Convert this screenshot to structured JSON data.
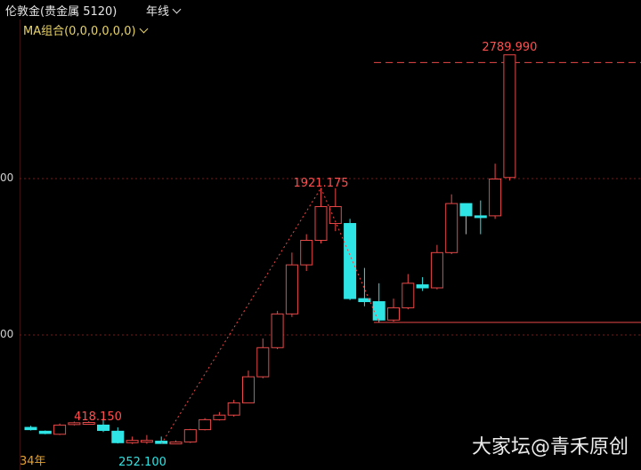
{
  "header": {
    "instrument": "伦敦金(贵金属 5120)",
    "period": "年线",
    "indicator": "MA组合(0,0,0,0,0,0)"
  },
  "chart_data": {
    "type": "candlestick",
    "y_tick_labels": [
      "00",
      "00"
    ],
    "x_tick_labels": [
      "34年"
    ],
    "y_range": [
      0,
      3000
    ],
    "annotations": {
      "high_1": "1921.175",
      "high_2": "2789.990",
      "low_1": "418.150",
      "low_2": "252.100"
    },
    "candles": [
      {
        "o": 360,
        "c": 345,
        "h": 370,
        "l": 340,
        "dir": "down"
      },
      {
        "o": 335,
        "c": 320,
        "h": 340,
        "l": 315,
        "dir": "down"
      },
      {
        "o": 315,
        "c": 375,
        "h": 385,
        "l": 310,
        "dir": "up"
      },
      {
        "o": 380,
        "c": 390,
        "h": 398,
        "l": 372,
        "dir": "up"
      },
      {
        "o": 388,
        "c": 392,
        "h": 400,
        "l": 382,
        "dir": "up"
      },
      {
        "o": 375,
        "c": 340,
        "h": 418,
        "l": 330,
        "dir": "down"
      },
      {
        "o": 335,
        "c": 260,
        "h": 360,
        "l": 255,
        "dir": "down"
      },
      {
        "o": 260,
        "c": 275,
        "h": 300,
        "l": 252,
        "dir": "up"
      },
      {
        "o": 272,
        "c": 275,
        "h": 310,
        "l": 253,
        "dir": "up"
      },
      {
        "o": 270,
        "c": 255,
        "h": 300,
        "l": 252,
        "dir": "down"
      },
      {
        "o": 252,
        "c": 265,
        "h": 275,
        "l": 252,
        "dir": "up"
      },
      {
        "o": 265,
        "c": 345,
        "h": 350,
        "l": 258,
        "dir": "up"
      },
      {
        "o": 345,
        "c": 410,
        "h": 420,
        "l": 340,
        "dir": "up"
      },
      {
        "o": 410,
        "c": 440,
        "h": 460,
        "l": 405,
        "dir": "up"
      },
      {
        "o": 440,
        "c": 520,
        "h": 540,
        "l": 430,
        "dir": "up"
      },
      {
        "o": 520,
        "c": 690,
        "h": 730,
        "l": 520,
        "dir": "up"
      },
      {
        "o": 690,
        "c": 880,
        "h": 940,
        "l": 680,
        "dir": "up"
      },
      {
        "o": 880,
        "c": 1100,
        "h": 1120,
        "l": 870,
        "dir": "up"
      },
      {
        "o": 1100,
        "c": 1420,
        "h": 1500,
        "l": 1080,
        "dir": "up"
      },
      {
        "o": 1420,
        "c": 1580,
        "h": 1620,
        "l": 1380,
        "dir": "up"
      },
      {
        "o": 1580,
        "c": 1800,
        "h": 1921.175,
        "l": 1560,
        "dir": "up"
      },
      {
        "o": 1800,
        "c": 1690,
        "h": 1920,
        "l": 1640,
        "dir": "up"
      },
      {
        "o": 1690,
        "c": 1200,
        "h": 1720,
        "l": 1190,
        "dir": "down"
      },
      {
        "o": 1200,
        "c": 1180,
        "h": 1400,
        "l": 1150,
        "dir": "down"
      },
      {
        "o": 1180,
        "c": 1060,
        "h": 1300,
        "l": 1045,
        "dir": "down"
      },
      {
        "o": 1060,
        "c": 1140,
        "h": 1200,
        "l": 1050,
        "dir": "up"
      },
      {
        "o": 1140,
        "c": 1300,
        "h": 1360,
        "l": 1130,
        "dir": "up"
      },
      {
        "o": 1290,
        "c": 1270,
        "h": 1340,
        "l": 1250,
        "dir": "down"
      },
      {
        "o": 1270,
        "c": 1500,
        "h": 1550,
        "l": 1260,
        "dir": "up"
      },
      {
        "o": 1500,
        "c": 1820,
        "h": 1880,
        "l": 1490,
        "dir": "up"
      },
      {
        "o": 1820,
        "c": 1740,
        "h": 1820,
        "l": 1620,
        "dir": "down"
      },
      {
        "o": 1740,
        "c": 1740,
        "h": 1840,
        "l": 1620,
        "dir": "down"
      },
      {
        "o": 1740,
        "c": 1980,
        "h": 2080,
        "l": 1720,
        "dir": "up"
      },
      {
        "o": 1990,
        "c": 2790,
        "h": 2789.99,
        "l": 1970,
        "dir": "up"
      }
    ],
    "ref_line_high": 2740,
    "ref_line_low": 1045
  },
  "watermark": "大家坛@青禾原创",
  "colors": {
    "up": "#e84848",
    "down": "#2ee4e4",
    "grid": "#7a1a1a",
    "ma_text": "#e8d46a",
    "label_red": "#ff4f4f",
    "label_cyan": "#2ee4e4",
    "axis_text": "#e6a02a"
  }
}
